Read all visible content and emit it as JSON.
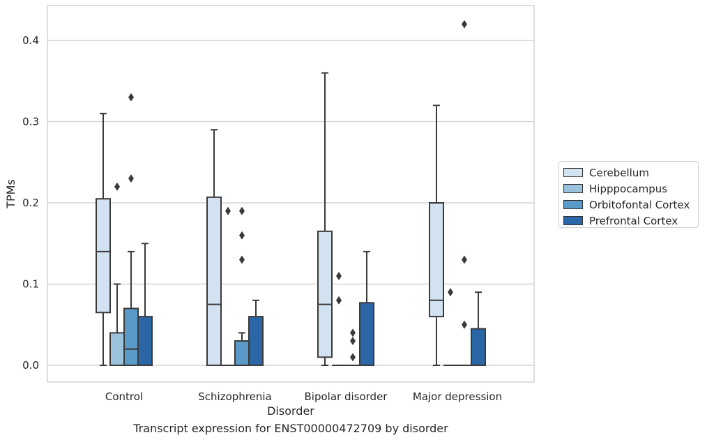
{
  "chart_data": {
    "type": "box",
    "caption": "Transcript expression for ENST00000472709 by disorder",
    "xlabel": "Disorder",
    "ylabel": "TPMs",
    "ylim": [
      -0.02,
      0.44
    ],
    "yticks": [
      0.0,
      0.1,
      0.2,
      0.3,
      0.4
    ],
    "ytick_labels": [
      "0.0",
      "0.1",
      "0.2",
      "0.3",
      "0.4"
    ],
    "categories": [
      "Control",
      "Schizophrenia",
      "Bipolar disorder",
      "Major depression"
    ],
    "grid": "horizontal",
    "legend_position": "right",
    "series": [
      {
        "name": "Cerebellum",
        "color": "#d2e2f0",
        "boxes": [
          {
            "whislo": 0.0,
            "q1": 0.065,
            "med": 0.14,
            "q3": 0.205,
            "whishi": 0.31,
            "fliers": []
          },
          {
            "whislo": 0.0,
            "q1": 0.0,
            "med": 0.075,
            "q3": 0.207,
            "whishi": 0.29,
            "fliers": []
          },
          {
            "whislo": 0.0,
            "q1": 0.01,
            "med": 0.075,
            "q3": 0.165,
            "whishi": 0.36,
            "fliers": []
          },
          {
            "whislo": 0.0,
            "q1": 0.06,
            "med": 0.08,
            "q3": 0.2,
            "whishi": 0.32,
            "fliers": []
          }
        ]
      },
      {
        "name": "Hipppocampus",
        "color": "#9ac2dd",
        "boxes": [
          {
            "whislo": 0.0,
            "q1": 0.0,
            "med": 0.0,
            "q3": 0.04,
            "whishi": 0.1,
            "fliers": [
              0.22
            ]
          },
          {
            "whislo": 0.0,
            "q1": 0.0,
            "med": 0.0,
            "q3": 0.0,
            "whishi": 0.0,
            "fliers": [
              0.19
            ]
          },
          {
            "whislo": 0.0,
            "q1": 0.0,
            "med": 0.0,
            "q3": 0.0,
            "whishi": 0.0,
            "fliers": [
              0.11,
              0.08
            ]
          },
          {
            "whislo": 0.0,
            "q1": 0.0,
            "med": 0.0,
            "q3": 0.0,
            "whishi": 0.0,
            "fliers": [
              0.09
            ]
          }
        ]
      },
      {
        "name": "Orbitofontal Cortex",
        "color": "#5a9ac8",
        "boxes": [
          {
            "whislo": 0.0,
            "q1": 0.0,
            "med": 0.02,
            "q3": 0.07,
            "whishi": 0.14,
            "fliers": [
              0.23,
              0.33
            ]
          },
          {
            "whislo": 0.0,
            "q1": 0.0,
            "med": 0.0,
            "q3": 0.03,
            "whishi": 0.04,
            "fliers": [
              0.13,
              0.16,
              0.19
            ]
          },
          {
            "whislo": 0.0,
            "q1": 0.0,
            "med": 0.0,
            "q3": 0.0,
            "whishi": 0.0,
            "fliers": [
              0.01,
              0.03,
              0.04
            ]
          },
          {
            "whislo": 0.0,
            "q1": 0.0,
            "med": 0.0,
            "q3": 0.0,
            "whishi": 0.0,
            "fliers": [
              0.05,
              0.13,
              0.42
            ]
          }
        ]
      },
      {
        "name": "Prefrontal Cortex",
        "color": "#2b67a7",
        "boxes": [
          {
            "whislo": 0.0,
            "q1": 0.0,
            "med": 0.0,
            "q3": 0.06,
            "whishi": 0.15,
            "fliers": []
          },
          {
            "whislo": 0.0,
            "q1": 0.0,
            "med": 0.0,
            "q3": 0.06,
            "whishi": 0.08,
            "fliers": []
          },
          {
            "whislo": 0.0,
            "q1": 0.0,
            "med": 0.0,
            "q3": 0.077,
            "whishi": 0.14,
            "fliers": []
          },
          {
            "whislo": 0.0,
            "q1": 0.0,
            "med": 0.0,
            "q3": 0.045,
            "whishi": 0.09,
            "fliers": []
          }
        ]
      }
    ]
  }
}
